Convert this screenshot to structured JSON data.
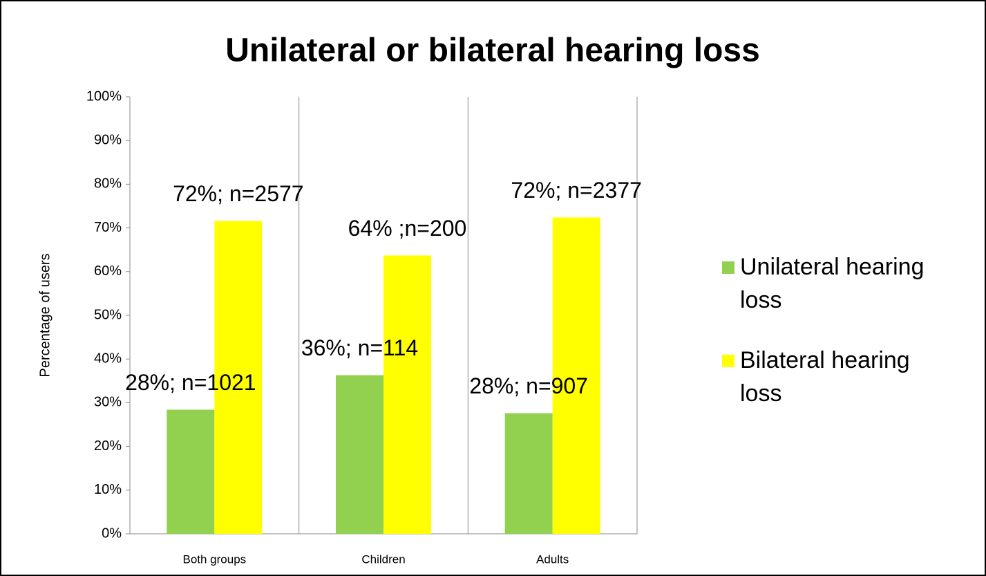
{
  "chart_data": {
    "type": "bar",
    "title": "Unilateral or bilateral hearing loss",
    "y_label": "Percentage of users",
    "categories": [
      "Both groups",
      "Children",
      "Adults"
    ],
    "series": [
      {
        "name": "Unilateral hearing loss",
        "color": "#92d050",
        "values": [
          28.4,
          36.3,
          27.6
        ],
        "value_labels": [
          "28%; n=1021",
          "36%; n=114",
          "28%; n=907"
        ]
      },
      {
        "name": "Bilateral hearing loss",
        "color": "#ffff00",
        "values": [
          71.6,
          63.7,
          72.4
        ],
        "value_labels": [
          "72%; n=2577",
          "64% ;n=200",
          "72%; n=2377"
        ]
      }
    ],
    "ylim": [
      0,
      100
    ],
    "yticks": [
      {
        "value": 0,
        "label": "0%"
      },
      {
        "value": 10,
        "label": "10%"
      },
      {
        "value": 20,
        "label": "20%"
      },
      {
        "value": 30,
        "label": "30%"
      },
      {
        "value": 40,
        "label": "40%"
      },
      {
        "value": 50,
        "label": "50%"
      },
      {
        "value": 60,
        "label": "60%"
      },
      {
        "value": 70,
        "label": "70%"
      },
      {
        "value": 80,
        "label": "80%"
      },
      {
        "value": 90,
        "label": "90%"
      },
      {
        "value": 100,
        "label": "100%"
      }
    ],
    "grid": false,
    "legend": "right"
  }
}
